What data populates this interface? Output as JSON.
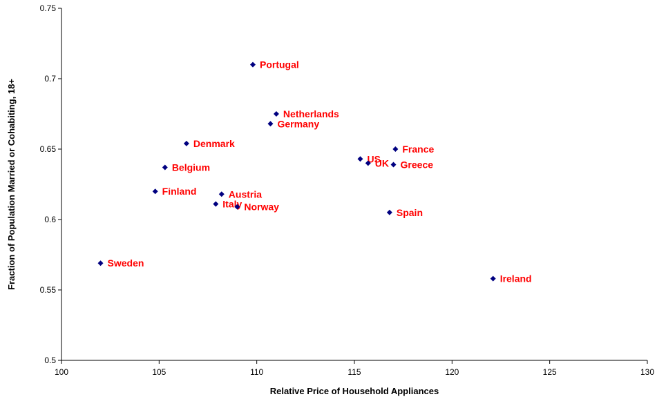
{
  "chart_data": {
    "type": "scatter",
    "title": "",
    "xlabel": "Relative Price of Household Appliances",
    "ylabel": "Fraction of Population Married or Cohabiting, 18+",
    "xlim": [
      100,
      130
    ],
    "ylim": [
      0.5,
      0.75
    ],
    "x_ticks": [
      "100",
      "105",
      "110",
      "115",
      "120",
      "125",
      "130"
    ],
    "y_ticks": [
      "0.5",
      "0.55",
      "0.6",
      "0.65",
      "0.7",
      "0.75"
    ],
    "grid": false,
    "legend": "none",
    "marker_color": "#000080",
    "label_color": "#ff0000",
    "points": [
      {
        "label": "Portugal",
        "x": 109.8,
        "y": 0.71
      },
      {
        "label": "Netherlands",
        "x": 111.0,
        "y": 0.675
      },
      {
        "label": "Germany",
        "x": 110.7,
        "y": 0.668
      },
      {
        "label": "Denmark",
        "x": 106.4,
        "y": 0.654
      },
      {
        "label": "France",
        "x": 117.1,
        "y": 0.65
      },
      {
        "label": "US",
        "x": 115.3,
        "y": 0.643
      },
      {
        "label": "UK",
        "x": 115.7,
        "y": 0.64
      },
      {
        "label": "Greece",
        "x": 117.0,
        "y": 0.639
      },
      {
        "label": "Belgium",
        "x": 105.3,
        "y": 0.637
      },
      {
        "label": "Finland",
        "x": 104.8,
        "y": 0.62
      },
      {
        "label": "Austria",
        "x": 108.2,
        "y": 0.618
      },
      {
        "label": "Italy",
        "x": 107.9,
        "y": 0.611
      },
      {
        "label": "Norway",
        "x": 109.0,
        "y": 0.609
      },
      {
        "label": "Spain",
        "x": 116.8,
        "y": 0.605
      },
      {
        "label": "Sweden",
        "x": 102.0,
        "y": 0.569
      },
      {
        "label": "Ireland",
        "x": 122.1,
        "y": 0.558
      }
    ]
  }
}
